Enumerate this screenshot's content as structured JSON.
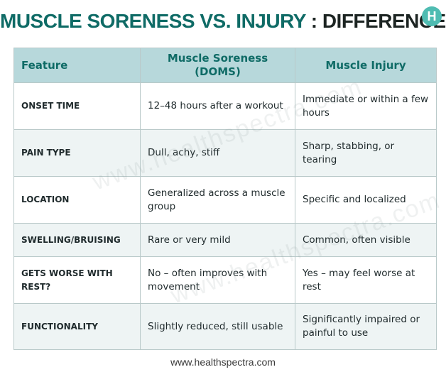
{
  "title": {
    "part1": "MUSCLE SORENESS VS. INJURY",
    "part2": " : DIFFERENCES"
  },
  "logo": {
    "letter": "H"
  },
  "watermark": "www.healthspectra.com",
  "table": {
    "headers": [
      "Feature",
      "Muscle Soreness (DOMS)",
      "Muscle Injury"
    ],
    "rows": [
      {
        "feature": "ONSET TIME",
        "soreness": "12–48 hours after a workout",
        "injury": "Immediate or within a few hours"
      },
      {
        "feature": "PAIN TYPE",
        "soreness": "Dull, achy, stiff",
        "injury": "Sharp, stabbing, or tearing"
      },
      {
        "feature": "LOCATION",
        "soreness": "Generalized across a muscle group",
        "injury": "Specific and localized"
      },
      {
        "feature": "SWELLING/BRUISING",
        "soreness": "Rare or very mild",
        "injury": "Common, often visible"
      },
      {
        "feature": "GETS WORSE WITH REST?",
        "soreness": "No – often improves with movement",
        "injury": "Yes – may feel worse at rest"
      },
      {
        "feature": "FUNCTIONALITY",
        "soreness": "Slightly reduced, still usable",
        "injury": "Significantly impaired or painful to use"
      }
    ]
  },
  "footer": "www.healthspectra.com"
}
